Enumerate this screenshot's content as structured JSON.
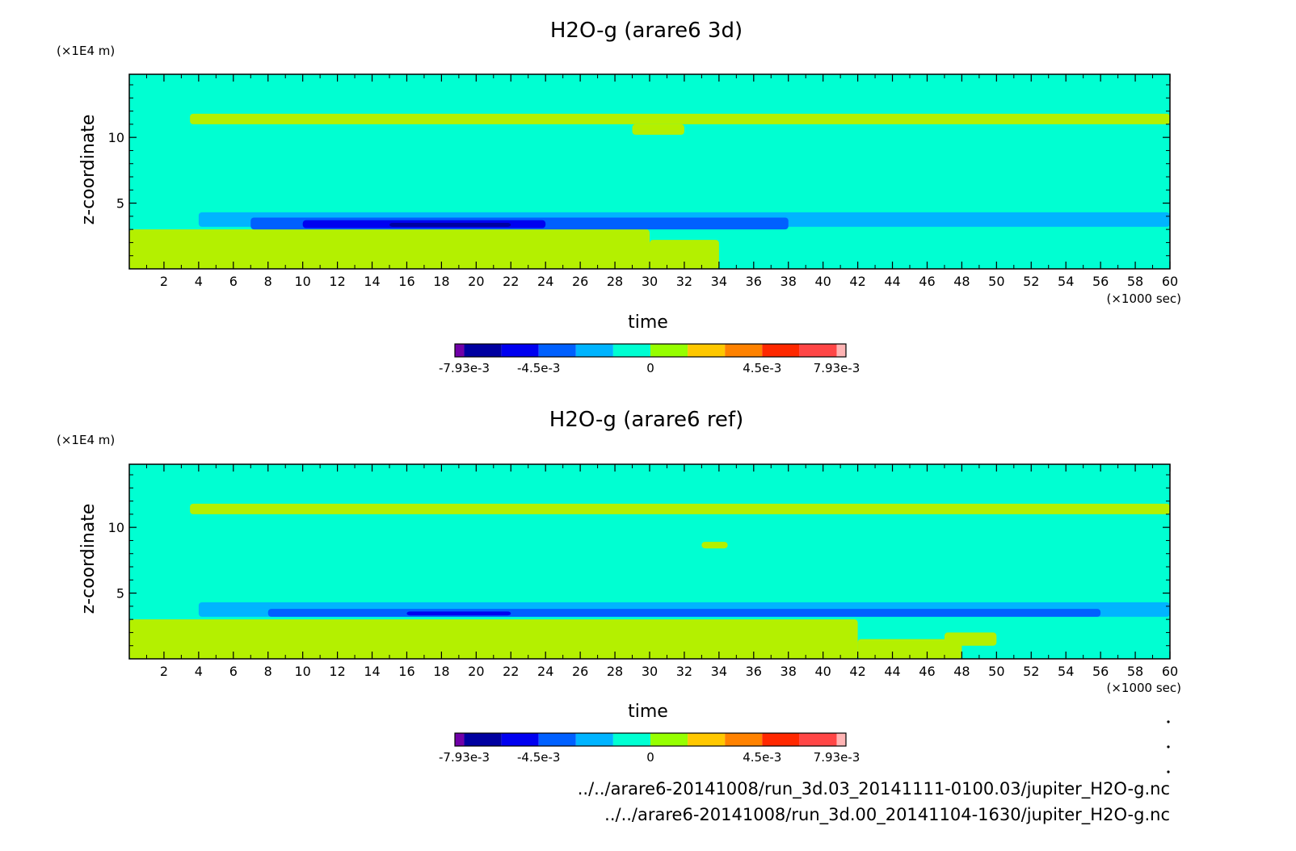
{
  "chart_data": [
    {
      "type": "heatmap",
      "title": "H2O-g (arare6 3d)",
      "xlabel": "time",
      "ylabel": "z-coordinate",
      "x_unit": "(×1000 sec)",
      "y_unit": "(×1E4 m)",
      "xlim": [
        0,
        60
      ],
      "ylim": [
        0,
        14.8
      ],
      "x_ticks": [
        "2",
        "4",
        "6",
        "8",
        "10",
        "12",
        "14",
        "16",
        "18",
        "20",
        "22",
        "24",
        "26",
        "28",
        "30",
        "32",
        "34",
        "36",
        "38",
        "40",
        "42",
        "44",
        "46",
        "48",
        "50",
        "52",
        "54",
        "56",
        "58",
        "60"
      ],
      "y_ticks": [
        "5",
        "10"
      ],
      "background_level": 0,
      "regions": [
        {
          "level": 1,
          "t0": 0,
          "t1": 30,
          "z0": 0,
          "z1": 3.0
        },
        {
          "level": 1,
          "t0": 30,
          "t1": 34,
          "z0": 0,
          "z1": 2.2
        },
        {
          "level": 1,
          "t0": 3.5,
          "t1": 60,
          "z0": 11.0,
          "z1": 11.8
        },
        {
          "level": 1,
          "t0": 29,
          "t1": 32,
          "z0": 10.2,
          "z1": 11.0
        },
        {
          "level": -1,
          "t0": 4,
          "t1": 60,
          "z0": 3.2,
          "z1": 4.3
        },
        {
          "level": -2,
          "t0": 7,
          "t1": 38,
          "z0": 3.0,
          "z1": 3.9
        },
        {
          "level": -3,
          "t0": 10,
          "t1": 24,
          "z0": 3.1,
          "z1": 3.7
        },
        {
          "level": -4,
          "t0": 15,
          "t1": 22,
          "z0": 3.2,
          "z1": 3.5
        }
      ]
    },
    {
      "type": "heatmap",
      "title": "H2O-g (arare6 ref)",
      "xlabel": "time",
      "ylabel": "z-coordinate",
      "x_unit": "(×1000 sec)",
      "y_unit": "(×1E4 m)",
      "xlim": [
        0,
        60
      ],
      "ylim": [
        0,
        14.8
      ],
      "x_ticks": [
        "2",
        "4",
        "6",
        "8",
        "10",
        "12",
        "14",
        "16",
        "18",
        "20",
        "22",
        "24",
        "26",
        "28",
        "30",
        "32",
        "34",
        "36",
        "38",
        "40",
        "42",
        "44",
        "46",
        "48",
        "50",
        "52",
        "54",
        "56",
        "58",
        "60"
      ],
      "y_ticks": [
        "5",
        "10"
      ],
      "background_level": 0,
      "regions": [
        {
          "level": 1,
          "t0": 0,
          "t1": 42,
          "z0": 0,
          "z1": 3.0
        },
        {
          "level": 1,
          "t0": 42,
          "t1": 48,
          "z0": 0,
          "z1": 1.5
        },
        {
          "level": 1,
          "t0": 47,
          "t1": 50,
          "z0": 1.0,
          "z1": 2.0
        },
        {
          "level": 1,
          "t0": 3.5,
          "t1": 60,
          "z0": 11.0,
          "z1": 11.8
        },
        {
          "level": 1,
          "t0": 33,
          "t1": 34.5,
          "z0": 8.4,
          "z1": 8.9
        },
        {
          "level": -1,
          "t0": 4,
          "t1": 60,
          "z0": 3.2,
          "z1": 4.3
        },
        {
          "level": -2,
          "t0": 8,
          "t1": 56,
          "z0": 3.2,
          "z1": 3.8
        },
        {
          "level": -3,
          "t0": 16,
          "t1": 22,
          "z0": 3.3,
          "z1": 3.6
        }
      ]
    }
  ],
  "colorbar": {
    "colors": [
      "#7000a8",
      "#0000a0",
      "#0000f0",
      "#0060ff",
      "#00b4ff",
      "#00ffd2",
      "#96ff00",
      "#ffc800",
      "#ff8200",
      "#ff2800",
      "#ff4646",
      "#ffb4b4"
    ],
    "weights": [
      1,
      4,
      4,
      4,
      4,
      4,
      4,
      4,
      4,
      4,
      4,
      1
    ],
    "labels": [
      "-7.93e-3",
      "-4.5e-3",
      "0",
      "4.5e-3",
      "7.93e-3"
    ]
  },
  "level_colors": {
    "-4": "#0000a0",
    "-3": "#0000f0",
    "-2": "#0060ff",
    "-1": "#00b4ff",
    "0": "#00ffd2",
    "1": "#b4f000"
  },
  "footer": {
    "line1": "../../arare6-20141008/run_3d.03_20141111-0100.03/jupiter_H2O-g.nc",
    "line2": "../../arare6-20141008/run_3d.00_20141104-1630/jupiter_H2O-g.nc"
  }
}
